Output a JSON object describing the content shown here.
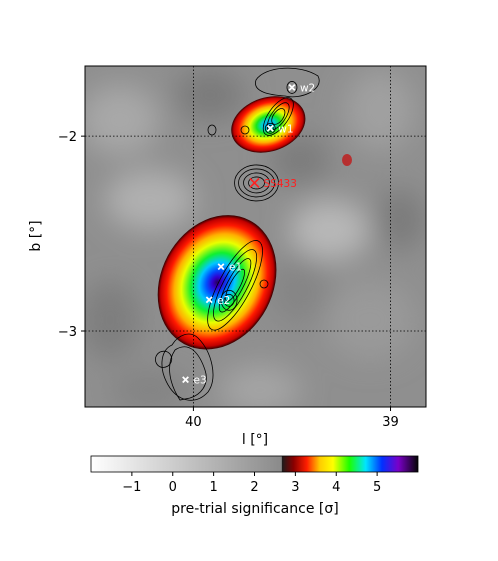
{
  "chart_data": {
    "type": "heatmap",
    "xlabel": "l [°]",
    "ylabel": "b [°]",
    "xlim": [
      40.55,
      38.82
    ],
    "ylim": [
      -3.39,
      -1.64
    ],
    "x_ticks": [
      40,
      39
    ],
    "x_tick_labels": [
      "40",
      "39"
    ],
    "y_ticks": [
      -2,
      -3
    ],
    "y_tick_labels": [
      "−2",
      "−3"
    ],
    "grid": "dotted",
    "colorbar": {
      "label": "pre-trial significance [σ]",
      "range": [
        -2,
        6
      ],
      "ticks": [
        -1,
        0,
        1,
        2,
        3,
        4,
        5
      ],
      "tick_labels": [
        "−1",
        "0",
        "1",
        "2",
        "3",
        "4",
        "5"
      ],
      "gray_below": 2.7
    },
    "blobs": [
      {
        "name": "west",
        "l": 39.62,
        "b": -1.94,
        "peak_sigma": 4.7
      },
      {
        "name": "east",
        "l": 39.88,
        "b": -2.75,
        "peak_sigma": 5.9
      }
    ],
    "sources": [
      {
        "label": "w2",
        "l": 39.5,
        "b": -1.75,
        "marker_color": "#ffffff",
        "text_color": "#ffffff"
      },
      {
        "label": "w1",
        "l": 39.61,
        "b": -1.96,
        "marker_color": "#ffffff",
        "text_color": "#ffffff"
      },
      {
        "label": "SS433",
        "l": 39.69,
        "b": -2.24,
        "marker_color": "#ff2020",
        "text_color": "#ff2020"
      },
      {
        "label": "e1",
        "l": 39.86,
        "b": -2.67,
        "marker_color": "#ffffff",
        "text_color": "#ffffff"
      },
      {
        "label": "e2",
        "l": 39.92,
        "b": -2.84,
        "marker_color": "#ffffff",
        "text_color": "#ffffff"
      },
      {
        "label": "e3",
        "l": 40.04,
        "b": -3.25,
        "marker_color": "#ffffff",
        "text_color": "#ffffff"
      }
    ]
  }
}
